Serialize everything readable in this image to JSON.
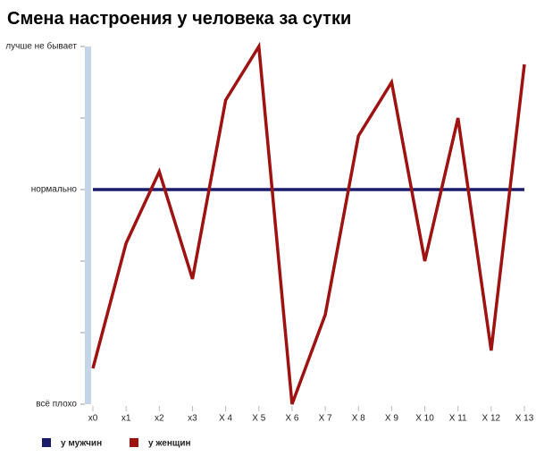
{
  "chart_data": {
    "type": "line",
    "title": "Смена настроения у человека за сутки",
    "categories": [
      "x0",
      "x1",
      "x2",
      "x3",
      "X 4",
      "X 5",
      "X 6",
      "X 7",
      "X 8",
      "X 9",
      "X 10",
      "X 11",
      "X 12",
      "X 13"
    ],
    "series": [
      {
        "name": "у мужчин",
        "color": "#1b1b6b",
        "values": [
          3,
          3,
          3,
          3,
          3,
          3,
          3,
          3,
          3,
          3,
          3,
          3,
          3,
          3
        ]
      },
      {
        "name": "у женщин",
        "color": "#9e1212",
        "values": [
          0.5,
          2.25,
          3.25,
          1.75,
          4.25,
          5,
          0,
          1.25,
          3.75,
          4.5,
          2,
          4,
          0.75,
          4.75
        ]
      }
    ],
    "ylim": [
      0,
      5
    ],
    "yticks": [
      {
        "value": 0,
        "label": "всё плохо"
      },
      {
        "value": 1,
        "label": null
      },
      {
        "value": 2,
        "label": null
      },
      {
        "value": 3,
        "label": "нормально"
      },
      {
        "value": 4,
        "label": null
      },
      {
        "value": 5,
        "label": "лучше не бывает"
      }
    ]
  }
}
